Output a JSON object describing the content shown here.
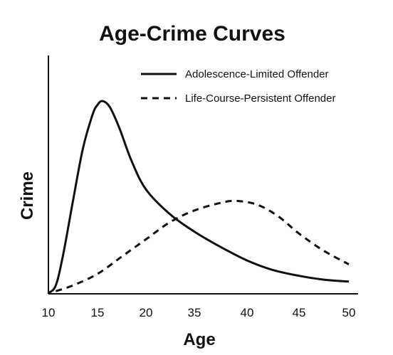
{
  "chart_data": {
    "type": "line",
    "title": "Age-Crime Curves",
    "xlabel": "Age",
    "ylabel": "Crime",
    "x_tick_labels": [
      "10",
      "15",
      "20",
      "35",
      "40",
      "45",
      "50"
    ],
    "xlim": [
      0,
      6
    ],
    "ylim": [
      0,
      1
    ],
    "grid": false,
    "legend_position": "top-right",
    "series": [
      {
        "name": "Adolescence-Limited Offender",
        "style": "solid",
        "color": "#111111",
        "points": [
          [
            0.0,
            0.0
          ],
          [
            0.15,
            0.04
          ],
          [
            0.3,
            0.2
          ],
          [
            0.5,
            0.48
          ],
          [
            0.7,
            0.75
          ],
          [
            0.9,
            0.93
          ],
          [
            1.0,
            0.98
          ],
          [
            1.1,
            1.0
          ],
          [
            1.25,
            0.97
          ],
          [
            1.45,
            0.86
          ],
          [
            1.7,
            0.69
          ],
          [
            2.0,
            0.54
          ],
          [
            2.5,
            0.41
          ],
          [
            3.0,
            0.32
          ],
          [
            3.5,
            0.24
          ],
          [
            4.0,
            0.17
          ],
          [
            4.5,
            0.12
          ],
          [
            5.0,
            0.09
          ],
          [
            5.5,
            0.07
          ],
          [
            6.0,
            0.06
          ]
        ]
      },
      {
        "name": "Life-Course-Persistent Offender",
        "style": "dashed",
        "color": "#111111",
        "points": [
          [
            0.15,
            0.01
          ],
          [
            0.5,
            0.04
          ],
          [
            1.0,
            0.1
          ],
          [
            1.5,
            0.19
          ],
          [
            2.0,
            0.28
          ],
          [
            2.5,
            0.37
          ],
          [
            3.0,
            0.43
          ],
          [
            3.5,
            0.47
          ],
          [
            3.8,
            0.48
          ],
          [
            4.2,
            0.46
          ],
          [
            4.6,
            0.4
          ],
          [
            5.0,
            0.31
          ],
          [
            5.5,
            0.22
          ],
          [
            6.0,
            0.15
          ]
        ]
      }
    ]
  }
}
